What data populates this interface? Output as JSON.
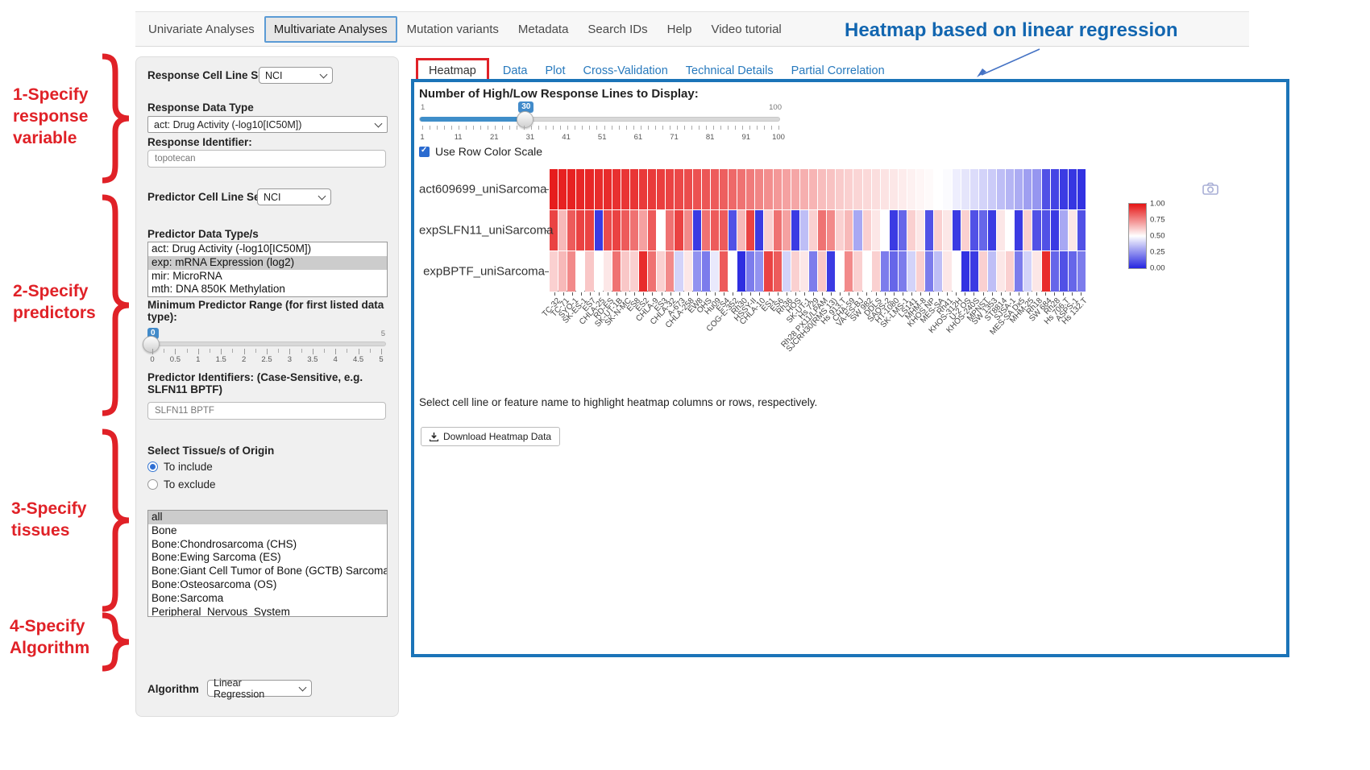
{
  "nav": {
    "items": [
      {
        "label": "Univariate Analyses",
        "active": false
      },
      {
        "label": "Multivariate Analyses",
        "active": true
      },
      {
        "label": "Mutation variants",
        "active": false
      },
      {
        "label": "Metadata",
        "active": false
      },
      {
        "label": "Search IDs",
        "active": false
      },
      {
        "label": "Help",
        "active": false
      },
      {
        "label": "Video tutorial",
        "active": false
      }
    ]
  },
  "annotations": {
    "title": "Heatmap based on linear regression",
    "title_color": "#1266b0",
    "step_color": "#e02127",
    "steps": [
      {
        "lines": [
          "1-Specify",
          "response",
          "variable"
        ]
      },
      {
        "lines": [
          "2-Specify",
          "predictors"
        ]
      },
      {
        "lines": [
          "3-Specify",
          "tissues"
        ]
      },
      {
        "lines": [
          "4-Specify",
          "Algorithm"
        ]
      }
    ]
  },
  "form": {
    "response_cell_line_set_label": "Response Cell Line Set",
    "response_cell_line_set_value": "NCI",
    "response_data_type_label": "Response Data Type",
    "response_data_type_value": "act: Drug Activity (-log10[IC50M])",
    "response_identifier_label": "Response Identifier:",
    "response_identifier_value": "topotecan",
    "predictor_cell_line_set_label": "Predictor Cell Line Set",
    "predictor_cell_line_set_value": "NCI",
    "predictor_data_types_label": "Predictor Data Type/s",
    "predictor_data_types": [
      {
        "label": "act: Drug Activity (-log10[IC50M])",
        "selected": false
      },
      {
        "label": "exp: mRNA Expression (log2)",
        "selected": true
      },
      {
        "label": "mir: MicroRNA",
        "selected": false
      },
      {
        "label": "mth: DNA 850K Methylation",
        "selected": false
      }
    ],
    "min_range_label": "Minimum Predictor Range (for first listed data type):",
    "min_range_slider": {
      "value": "0",
      "max_label": "5",
      "tick_labels": [
        "0",
        "0.5",
        "1",
        "1.5",
        "2",
        "2.5",
        "3",
        "3.5",
        "4",
        "4.5",
        "5"
      ]
    },
    "predictor_ids_label": "Predictor Identifiers: (Case-Sensitive, e.g. SLFN11 BPTF)",
    "predictor_ids_value": "SLFN11 BPTF",
    "tissue_label": "Select Tissue/s of Origin",
    "include_option": {
      "label": "To include",
      "selected": true
    },
    "exclude_option": {
      "label": "To exclude",
      "selected": false
    },
    "tissues": [
      {
        "label": "all",
        "selected": true
      },
      {
        "label": "Bone",
        "selected": false
      },
      {
        "label": "Bone:Chondrosarcoma (CHS)",
        "selected": false
      },
      {
        "label": "Bone:Ewing Sarcoma (ES)",
        "selected": false
      },
      {
        "label": "Bone:Giant Cell Tumor of Bone (GCTB) Sarcoma",
        "selected": false
      },
      {
        "label": "Bone:Osteosarcoma (OS)",
        "selected": false
      },
      {
        "label": "Bone:Sarcoma",
        "selected": false
      },
      {
        "label": "Peripheral_Nervous_System",
        "selected": false
      }
    ],
    "algorithm_label": "Algorithm",
    "algorithm_value": "Linear Regression"
  },
  "main": {
    "tabs": [
      {
        "label": "Heatmap",
        "active": true,
        "annotated": true
      },
      {
        "label": "Data",
        "active": false,
        "annotated": false
      },
      {
        "label": "Plot",
        "active": false,
        "annotated": false
      },
      {
        "label": "Cross-Validation",
        "active": false,
        "annotated": false
      },
      {
        "label": "Technical Details",
        "active": false,
        "annotated": false
      },
      {
        "label": "Partial Correlation",
        "active": false,
        "annotated": false
      }
    ],
    "response_slider": {
      "label": "Number of High/Low Response Lines to Display:",
      "min_label": "1",
      "max_label": "100",
      "value": 30,
      "min": 1,
      "max": 100,
      "tick_labels": [
        1,
        11,
        21,
        31,
        41,
        51,
        61,
        71,
        81,
        91,
        100
      ]
    },
    "row_scale_checkbox": {
      "label": "Use Row Color Scale",
      "checked": true
    },
    "note": "Select cell line or feature name to highlight heatmap columns or rows, respectively.",
    "download_button_label": "Download Heatmap Data",
    "icons": {
      "camera": "camera-icon",
      "download": "download-icon"
    }
  },
  "chart_data": {
    "type": "heatmap",
    "title": "",
    "legend_position": "right",
    "rows": [
      "act609699_uniSarcoma",
      "expSLFN11_uniSarcoma",
      "expBPTF_uniSarcoma"
    ],
    "x_categories": [
      "TC-32",
      "TC-71",
      "SYO-1",
      "SK-ES-1",
      "ES7",
      "CHLA-25",
      "RD-ES",
      "SK-UT-1B",
      "SK-N-MC",
      "ES8",
      "ES2",
      "CHLA-9",
      "ES3",
      "CHLA-32",
      "A-673",
      "CHLA-258",
      "EW8",
      "OHS",
      "Hu09",
      "ES4",
      "COG-E-352",
      "Rh30",
      "HSSY-II",
      "CHLA-10",
      "ES1",
      "ES6",
      "Rh36",
      "HOS",
      "SK-UT-1",
      "Hs 729",
      "Rh28 PX11/LPAM",
      "SJCRH30(RMS 13)",
      "Hs 913.T",
      "CHA-59",
      "VA-ES-BJ",
      "SW 982",
      "DDLS",
      "SAOS-2",
      "HT-1080",
      "SK-LMS-1",
      "LS141",
      "MHM-8",
      "KHOS NP",
      "MES-SA",
      "Rh41",
      "KHOS-312H",
      "U-2 OS",
      "KHOS-240S",
      "MPNST",
      "SW 1353",
      "ST8814",
      "SJSA-1",
      "MES-SA Dx5",
      "MHM-25",
      "Rh18",
      "SW 684",
      "Rh28",
      "Hs 706.T",
      "ASPS-1",
      "Hs 132.T"
    ],
    "series": [
      {
        "name": "act609699_uniSarcoma",
        "values": [
          0.98,
          0.97,
          0.97,
          0.96,
          0.96,
          0.95,
          0.95,
          0.94,
          0.93,
          0.93,
          0.92,
          0.92,
          0.91,
          0.9,
          0.89,
          0.88,
          0.87,
          0.86,
          0.85,
          0.84,
          0.82,
          0.8,
          0.78,
          0.76,
          0.74,
          0.72,
          0.7,
          0.69,
          0.67,
          0.66,
          0.64,
          0.63,
          0.61,
          0.6,
          0.59,
          0.58,
          0.57,
          0.56,
          0.55,
          0.54,
          0.53,
          0.52,
          0.51,
          0.5,
          0.49,
          0.46,
          0.44,
          0.42,
          0.4,
          0.38,
          0.35,
          0.33,
          0.31,
          0.28,
          0.26,
          0.1,
          0.07,
          0.05,
          0.04,
          0.03
        ]
      },
      {
        "name": "expSLFN11_uniSarcoma",
        "values": [
          0.9,
          0.65,
          0.85,
          0.9,
          0.9,
          0.05,
          0.88,
          0.9,
          0.85,
          0.8,
          0.7,
          0.85,
          0.5,
          0.8,
          0.9,
          0.75,
          0.05,
          0.8,
          0.85,
          0.85,
          0.1,
          0.65,
          0.9,
          0.05,
          0.6,
          0.8,
          0.7,
          0.05,
          0.35,
          0.6,
          0.8,
          0.75,
          0.6,
          0.65,
          0.3,
          0.6,
          0.55,
          0.5,
          0.05,
          0.15,
          0.6,
          0.55,
          0.1,
          0.6,
          0.55,
          0.05,
          0.6,
          0.1,
          0.15,
          0.05,
          0.55,
          0.5,
          0.05,
          0.6,
          0.1,
          0.1,
          0.05,
          0.3,
          0.55,
          0.1
        ]
      },
      {
        "name": "expBPTF_uniSarcoma",
        "values": [
          0.6,
          0.65,
          0.75,
          0.5,
          0.62,
          0.5,
          0.55,
          0.8,
          0.62,
          0.6,
          0.95,
          0.8,
          0.6,
          0.75,
          0.4,
          0.55,
          0.25,
          0.2,
          0.45,
          0.85,
          0.5,
          0.02,
          0.2,
          0.25,
          0.9,
          0.85,
          0.4,
          0.6,
          0.55,
          0.2,
          0.62,
          0.05,
          0.5,
          0.75,
          0.6,
          0.5,
          0.6,
          0.2,
          0.15,
          0.2,
          0.4,
          0.6,
          0.2,
          0.35,
          0.55,
          0.5,
          0.03,
          0.05,
          0.6,
          0.35,
          0.55,
          0.6,
          0.2,
          0.4,
          0.55,
          0.95,
          0.15,
          0.1,
          0.15,
          0.2
        ]
      }
    ],
    "colorscale": {
      "high_color": "#e51414",
      "mid_color": "#ffffff",
      "low_color": "#2525e0",
      "domain": [
        0,
        1
      ],
      "tick_labels": [
        "1.00",
        "0.75",
        "0.50",
        "0.25",
        "0.00"
      ]
    }
  }
}
